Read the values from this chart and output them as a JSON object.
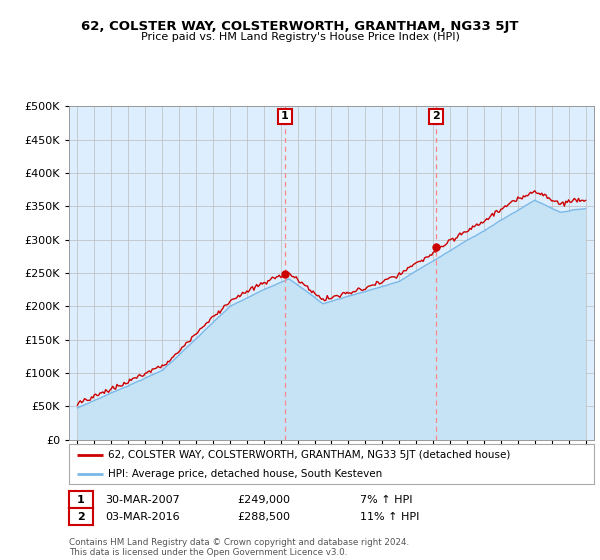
{
  "title": "62, COLSTER WAY, COLSTERWORTH, GRANTHAM, NG33 5JT",
  "subtitle": "Price paid vs. HM Land Registry's House Price Index (HPI)",
  "legend_line1": "62, COLSTER WAY, COLSTERWORTH, GRANTHAM, NG33 5JT (detached house)",
  "legend_line2": "HPI: Average price, detached house, South Kesteven",
  "footer1": "Contains HM Land Registry data © Crown copyright and database right 2024.",
  "footer2": "This data is licensed under the Open Government Licence v3.0.",
  "transaction1": {
    "label": "1",
    "date": "30-MAR-2007",
    "price": "£249,000",
    "hpi": "7% ↑ HPI"
  },
  "transaction2": {
    "label": "2",
    "date": "03-MAR-2016",
    "price": "£288,500",
    "hpi": "11% ↑ HPI"
  },
  "vline1_x": 2007.25,
  "vline2_x": 2016.17,
  "point1_x": 2007.25,
  "point1_y": 249000,
  "point2_x": 2016.17,
  "point2_y": 288500,
  "ylim": [
    0,
    500000
  ],
  "xlim": [
    1994.5,
    2025.5
  ],
  "hpi_fill_color": "#c5e3f5",
  "hpi_line_color": "#7ab8e8",
  "price_color": "#cc0000",
  "background_plot": "#ddeeff",
  "background_fig": "#ffffff",
  "grid_color": "#bbbbbb",
  "vline_color": "#ff8888"
}
